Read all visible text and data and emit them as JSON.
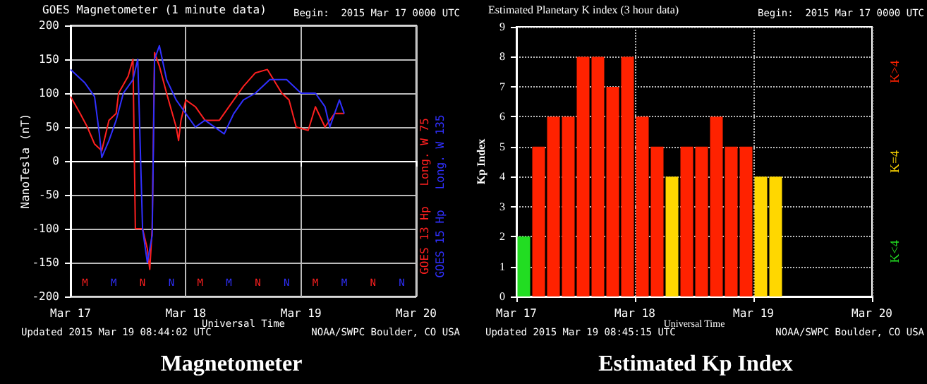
{
  "chart_data": [
    {
      "type": "line",
      "title": "GOES Magnetometer (1 minute data)",
      "subtitle": "Begin:  2015 Mar 17 0000 UTC",
      "xlabel": "Universal Time",
      "ylabel": "NanoTesla (nT)",
      "xlim": [
        "2015-03-17",
        "2015-03-20"
      ],
      "xticks": [
        {
          "value": "2015-03-17",
          "label": "Mar 17"
        },
        {
          "value": "2015-03-18",
          "label": "Mar 18"
        },
        {
          "value": "2015-03-19",
          "label": "Mar 19"
        },
        {
          "value": "2015-03-20",
          "label": "Mar 20"
        }
      ],
      "ylim": [
        -200,
        200
      ],
      "yticks": [
        -200,
        -150,
        -100,
        -50,
        0,
        50,
        100,
        150,
        200
      ],
      "grid": true,
      "legend": "right",
      "series": [
        {
          "name": "GOES 13 Hp   Long. W 75",
          "color": "#ff2020",
          "x": [
            "2015-03-17T00:00",
            "2015-03-17T02:00",
            "2015-03-17T03:30",
            "2015-03-17T05:00",
            "2015-03-17T06:30",
            "2015-03-17T08:00",
            "2015-03-17T09:30",
            "2015-03-17T10:00",
            "2015-03-17T12:00",
            "2015-03-17T13:00",
            "2015-03-17T13:30",
            "2015-03-17T15:00",
            "2015-03-17T16:00",
            "2015-03-17T16:30",
            "2015-03-17T17:00",
            "2015-03-17T17:30",
            "2015-03-17T18:30",
            "2015-03-17T20:00",
            "2015-03-17T22:00",
            "2015-03-17T22:30",
            "2015-03-17T23:00",
            "2015-03-18T00:00",
            "2015-03-18T02:00",
            "2015-03-18T04:00",
            "2015-03-18T07:00",
            "2015-03-18T09:00",
            "2015-03-18T12:00",
            "2015-03-18T14:30",
            "2015-03-18T17:00",
            "2015-03-18T20:00",
            "2015-03-18T21:30",
            "2015-03-18T23:00",
            "2015-03-19T01:30",
            "2015-03-19T03:00",
            "2015-03-19T05:00",
            "2015-03-19T07:00",
            "2015-03-19T09:00"
          ],
          "values": [
            95,
            70,
            50,
            25,
            15,
            60,
            70,
            100,
            125,
            150,
            -100,
            -100,
            -130,
            -160,
            -100,
            160,
            140,
            100,
            50,
            30,
            60,
            90,
            80,
            60,
            60,
            80,
            110,
            130,
            135,
            100,
            90,
            50,
            45,
            80,
            50,
            70,
            70
          ]
        },
        {
          "name": "GOES 15 Hp   Long. W 135",
          "color": "#3030ff",
          "x": [
            "2015-03-17T00:00",
            "2015-03-17T03:00",
            "2015-03-17T05:00",
            "2015-03-17T06:00",
            "2015-03-17T06:30",
            "2015-03-17T08:00",
            "2015-03-17T09:30",
            "2015-03-17T11:00",
            "2015-03-17T13:00",
            "2015-03-17T14:00",
            "2015-03-17T15:00",
            "2015-03-17T16:00",
            "2015-03-17T17:00",
            "2015-03-17T17:30",
            "2015-03-17T18:30",
            "2015-03-17T20:00",
            "2015-03-17T22:00",
            "2015-03-18T00:00",
            "2015-03-18T02:00",
            "2015-03-18T04:00",
            "2015-03-18T08:00",
            "2015-03-18T10:00",
            "2015-03-18T12:00",
            "2015-03-18T14:30",
            "2015-03-18T17:30",
            "2015-03-18T21:00",
            "2015-03-19T00:00",
            "2015-03-19T03:00",
            "2015-03-19T05:00",
            "2015-03-19T06:00",
            "2015-03-19T08:00",
            "2015-03-19T09:00"
          ],
          "values": [
            135,
            115,
            95,
            40,
            5,
            30,
            60,
            100,
            120,
            150,
            -100,
            -150,
            -110,
            150,
            170,
            120,
            90,
            70,
            50,
            60,
            40,
            70,
            90,
            100,
            120,
            120,
            100,
            100,
            80,
            50,
            90,
            70
          ]
        }
      ],
      "annotations": [
        "Updated 2015 Mar 19 08:44:02 UTC",
        "NOAA/SWPC Boulder, CO USA",
        "Magnetometer",
        "M",
        "M",
        "N",
        "N",
        "M",
        "M",
        "N",
        "N",
        "M",
        "M",
        "N",
        "N"
      ]
    },
    {
      "type": "bar",
      "title": "Estimated Planetary K index (3 hour data)",
      "subtitle": "Begin:  2015 Mar 17 0000 UTC",
      "xlabel": "Universal Time",
      "ylabel": "Kp Index",
      "xlim": [
        "2015-03-17",
        "2015-03-20"
      ],
      "xticks": [
        {
          "value": "2015-03-17",
          "label": "Mar 17"
        },
        {
          "value": "2015-03-18",
          "label": "Mar 18"
        },
        {
          "value": "2015-03-19",
          "label": "Mar 19"
        },
        {
          "value": "2015-03-20",
          "label": "Mar 20"
        }
      ],
      "ylim": [
        0,
        9
      ],
      "yticks": [
        0,
        1,
        2,
        3,
        4,
        5,
        6,
        7,
        8,
        9
      ],
      "grid": true,
      "legend": "right",
      "series": [
        {
          "name": "K<4",
          "color": "#22dd22",
          "x": [
            "2015-03-17T01:30"
          ],
          "values": [
            2
          ]
        },
        {
          "name": "K=4",
          "color": "#ffd700",
          "x": [
            "2015-03-18T07:30",
            "2015-03-19T01:30",
            "2015-03-19T04:30"
          ],
          "values": [
            4,
            4,
            4
          ]
        },
        {
          "name": "K>4",
          "color": "#ff2200",
          "x": [
            "2015-03-17T04:30",
            "2015-03-17T07:30",
            "2015-03-17T10:30",
            "2015-03-17T13:30",
            "2015-03-17T16:30",
            "2015-03-17T19:30",
            "2015-03-17T22:30",
            "2015-03-18T01:30",
            "2015-03-18T04:30",
            "2015-03-18T10:30",
            "2015-03-18T13:30",
            "2015-03-18T16:30",
            "2015-03-18T19:30",
            "2015-03-18T22:30"
          ],
          "values": [
            5,
            6,
            6,
            8,
            8,
            7,
            8,
            6,
            5,
            5,
            5,
            6,
            5,
            5
          ]
        }
      ],
      "annotations": [
        "Updated 2015 Mar 19 08:45:15 UTC",
        "NOAA/SWPC Boulder, CO USA",
        "Estimated Kp Index"
      ]
    }
  ]
}
